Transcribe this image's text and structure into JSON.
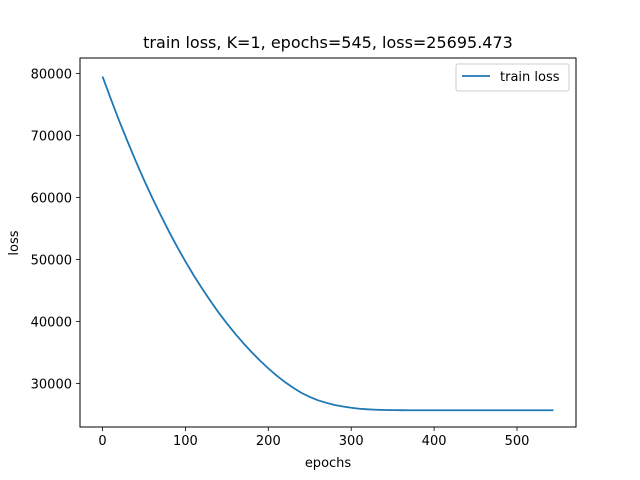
{
  "chart_data": {
    "type": "line",
    "title": "train loss, K=1, epochs=545, loss=25695.473",
    "xlabel": "epochs",
    "ylabel": "loss",
    "xlim": [
      -27.2,
      571.2
    ],
    "ylim": [
      23000,
      82500
    ],
    "xticks": [
      0,
      100,
      200,
      300,
      400,
      500
    ],
    "yticks": [
      30000,
      40000,
      50000,
      60000,
      70000,
      80000
    ],
    "grid": false,
    "legend": {
      "position": "top-right",
      "entries": [
        "train loss"
      ]
    },
    "series": [
      {
        "name": "train loss",
        "color": "#1f77b4",
        "x": [
          0,
          10,
          20,
          30,
          40,
          50,
          60,
          70,
          80,
          90,
          100,
          110,
          120,
          130,
          140,
          150,
          160,
          170,
          180,
          190,
          200,
          210,
          220,
          230,
          240,
          250,
          260,
          270,
          280,
          290,
          300,
          310,
          320,
          330,
          340,
          350,
          360,
          370,
          380,
          390,
          400,
          410,
          420,
          430,
          440,
          450,
          460,
          470,
          480,
          490,
          500,
          510,
          520,
          530,
          544
        ],
        "y": [
          79500,
          75900,
          72400,
          69100,
          65900,
          62850,
          59950,
          57200,
          54550,
          52050,
          49700,
          47450,
          45350,
          43350,
          41450,
          39700,
          38050,
          36500,
          35050,
          33700,
          32450,
          31300,
          30250,
          29330,
          28500,
          27850,
          27300,
          26900,
          26550,
          26300,
          26100,
          25950,
          25850,
          25780,
          25740,
          25720,
          25710,
          25705,
          25700,
          25698,
          25697,
          25696,
          25696,
          25696,
          25696,
          25695.5,
          25695.5,
          25695.5,
          25695.5,
          25695.5,
          25695.5,
          25695.5,
          25695.5,
          25695.5,
          25695.473
        ]
      }
    ]
  }
}
